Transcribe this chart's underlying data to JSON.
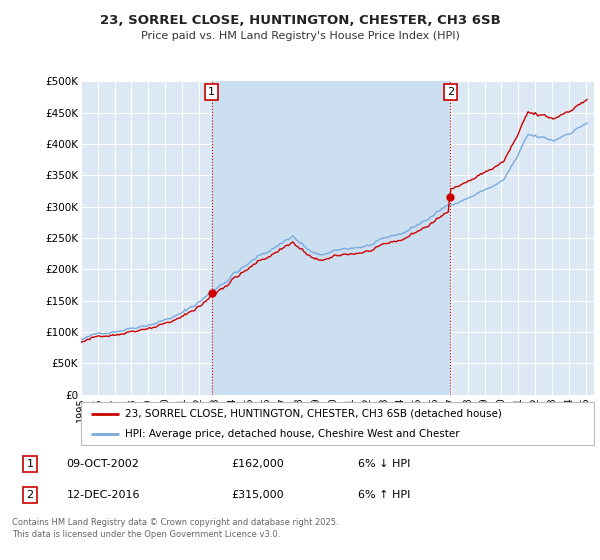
{
  "title_line1": "23, SORREL CLOSE, HUNTINGTON, CHESTER, CH3 6SB",
  "title_line2": "Price paid vs. HM Land Registry's House Price Index (HPI)",
  "background_color": "#ffffff",
  "plot_bg_color": "#dce9f5",
  "highlight_bg_color": "#ccdff0",
  "grid_color": "#ffffff",
  "hpi_color": "#7aaadd",
  "price_color": "#cc0000",
  "vline_color": "#cc0000",
  "ylim": [
    0,
    500000
  ],
  "yticks": [
    0,
    50000,
    100000,
    150000,
    200000,
    250000,
    300000,
    350000,
    400000,
    450000,
    500000
  ],
  "ytick_labels": [
    "£0",
    "£50K",
    "£100K",
    "£150K",
    "£200K",
    "£250K",
    "£300K",
    "£350K",
    "£400K",
    "£450K",
    "£500K"
  ],
  "xlim_start": 1995.0,
  "xlim_end": 2025.5,
  "xticks": [
    1995,
    1996,
    1997,
    1998,
    1999,
    2000,
    2001,
    2002,
    2003,
    2004,
    2005,
    2006,
    2007,
    2008,
    2009,
    2010,
    2011,
    2012,
    2013,
    2014,
    2015,
    2016,
    2017,
    2018,
    2019,
    2020,
    2021,
    2022,
    2023,
    2024,
    2025
  ],
  "purchase1_x": 2002.77,
  "purchase1_y": 162000,
  "purchase1_label": "1",
  "purchase2_x": 2016.95,
  "purchase2_y": 315000,
  "purchase2_label": "2",
  "legend_line1": "23, SORREL CLOSE, HUNTINGTON, CHESTER, CH3 6SB (detached house)",
  "legend_line2": "HPI: Average price, detached house, Cheshire West and Chester",
  "footnote": "Contains HM Land Registry data © Crown copyright and database right 2025.\nThis data is licensed under the Open Government Licence v3.0."
}
